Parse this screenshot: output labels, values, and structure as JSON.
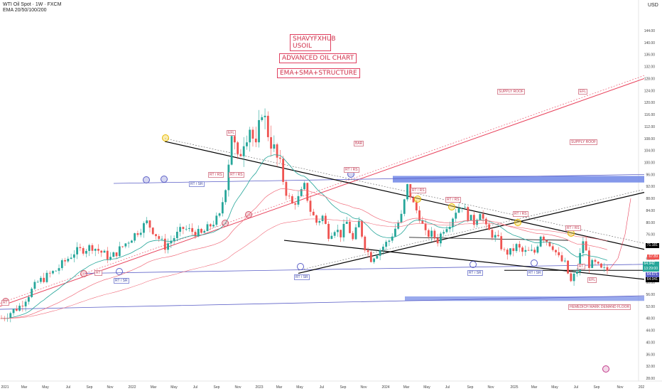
{
  "header": {
    "symbol_line": "WTI Oil Spot · 1W · FXCM",
    "indicator_line": "EMA 20/50/100/200",
    "currency": "USD"
  },
  "annotations": {
    "title_box": [
      "SHAVYFXHUB",
      "USOIL"
    ],
    "subtitle_1": "ADVANCED OIL CHART",
    "subtitle_2": "EMA+SMA+STRUCTURE",
    "supply_roof_top": "SUPPLY ROOF",
    "supply_roof": "SUPPLY ROOF",
    "bar": "BAR",
    "efl_top": "EFL",
    "efl_left": "EFL",
    "efl_right": "EFL",
    "demand_floor": "HEMEDICH MARK DEMAND FLOOR",
    "rt_rs_labels": [
      "RT / RS",
      "RT / RS",
      "RT / RS",
      "RT / RS",
      "RT / RS",
      "RT / RS",
      "RT / RS"
    ],
    "rt_sr_labels": [
      "RT / SR",
      "RT / SR",
      "RT / SR",
      "RT / SR",
      "RT / SR"
    ],
    "rt_labels": [
      "RT",
      "RT",
      "RT"
    ]
  },
  "colors": {
    "bull": "#26a69a",
    "bear": "#ef5350",
    "ema20": "#26a69a",
    "ema_other": "#f06b7a",
    "trend_red": "#e8405a",
    "blue_zone": "#6f86e6",
    "blue_line": "#5b5fc7",
    "black": "#000000"
  },
  "price_labels": {
    "p1": "71.181",
    "p2": "67.89",
    "p3": "64.942",
    "p3_sub": "13:29:00",
    "p4": "64.671",
    "p5": "64.041"
  },
  "chart_data": {
    "type": "candlestick",
    "title": "WTI Oil Spot · 1W · FXCM",
    "ylabel": "USD",
    "y_ticks": [
      28,
      32,
      36,
      40,
      44,
      48,
      52,
      56,
      60,
      64,
      68,
      72,
      76,
      80,
      84,
      88,
      92,
      96,
      100,
      104,
      108,
      112,
      116,
      120,
      124,
      128,
      132,
      136,
      140,
      144
    ],
    "x_ticks": [
      "2021",
      "Mar",
      "May",
      "Jul",
      "Sep",
      "Nov",
      "2022",
      "Mar",
      "May",
      "Jul",
      "Sep",
      "Nov",
      "2023",
      "Mar",
      "May",
      "Jul",
      "Sep",
      "Nov",
      "2024",
      "Mar",
      "May",
      "Jul",
      "Sep",
      "Nov",
      "2025",
      "Mar",
      "May",
      "Jul",
      "Sep",
      "Nov",
      "202"
    ],
    "close_path": [
      [
        0,
        48
      ],
      [
        6,
        52
      ],
      [
        12,
        60
      ],
      [
        18,
        64
      ],
      [
        24,
        70
      ],
      [
        30,
        72
      ],
      [
        36,
        68
      ],
      [
        42,
        74
      ],
      [
        48,
        80
      ],
      [
        54,
        72
      ],
      [
        60,
        78
      ],
      [
        66,
        76
      ],
      [
        72,
        82
      ],
      [
        74,
        92
      ],
      [
        76,
        110
      ],
      [
        78,
        100
      ],
      [
        80,
        108
      ],
      [
        82,
        112
      ],
      [
        84,
        104
      ],
      [
        86,
        118
      ],
      [
        88,
        110
      ],
      [
        90,
        104
      ],
      [
        92,
        98
      ],
      [
        94,
        90
      ],
      [
        96,
        86
      ],
      [
        98,
        88
      ],
      [
        100,
        92
      ],
      [
        102,
        84
      ],
      [
        104,
        80
      ],
      [
        106,
        82
      ],
      [
        108,
        76
      ],
      [
        110,
        78
      ],
      [
        112,
        76
      ],
      [
        114,
        80
      ],
      [
        116,
        74
      ],
      [
        118,
        80
      ],
      [
        120,
        72
      ],
      [
        122,
        68
      ],
      [
        124,
        70
      ],
      [
        126,
        72
      ],
      [
        128,
        74
      ],
      [
        130,
        78
      ],
      [
        132,
        82
      ],
      [
        134,
        92
      ],
      [
        136,
        86
      ],
      [
        138,
        82
      ],
      [
        140,
        76
      ],
      [
        142,
        76
      ],
      [
        144,
        74
      ],
      [
        146,
        78
      ],
      [
        148,
        80
      ],
      [
        150,
        84
      ],
      [
        152,
        86
      ],
      [
        154,
        82
      ],
      [
        156,
        80
      ],
      [
        158,
        84
      ],
      [
        160,
        78
      ],
      [
        162,
        76
      ],
      [
        164,
        74
      ],
      [
        166,
        70
      ],
      [
        168,
        70
      ],
      [
        170,
        72
      ],
      [
        172,
        70
      ],
      [
        174,
        70
      ],
      [
        176,
        70
      ],
      [
        178,
        76
      ],
      [
        180,
        74
      ],
      [
        182,
        72
      ],
      [
        184,
        68
      ],
      [
        186,
        66
      ],
      [
        188,
        60
      ],
      [
        190,
        64
      ],
      [
        192,
        74
      ],
      [
        194,
        66
      ],
      [
        196,
        66
      ],
      [
        198,
        64
      ],
      [
        200,
        64
      ]
    ]
  }
}
